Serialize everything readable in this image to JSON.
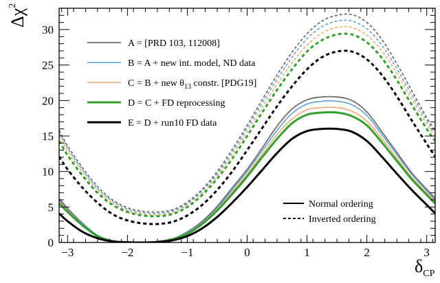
{
  "chart_data": {
    "type": "line",
    "xlabel": {
      "main": "δ",
      "sub": "CP"
    },
    "ylabel": {
      "main": "Δχ",
      "sup": "2"
    },
    "xlim": [
      -3.1416,
      3.1416
    ],
    "ylim": [
      0,
      33
    ],
    "x_ticks": [
      -3,
      -2,
      -1,
      0,
      1,
      2,
      3
    ],
    "y_ticks": [
      0,
      5,
      10,
      15,
      20,
      25,
      30
    ],
    "grid": false,
    "legend_upper": {
      "placement": "top-left",
      "entries": [
        {
          "label": "A = [PRD 103, 112008]",
          "color": "#6e6e6e",
          "width": 1.8
        },
        {
          "label": "B = A + new int. model, ND data",
          "color": "#5b9bd5",
          "width": 1.5
        },
        {
          "label_parts": [
            "C = B + new θ",
            "13",
            " constr. [PDG19]"
          ],
          "color": "#f2a46a",
          "width": 1.5
        },
        {
          "label": "D = C + FD reprocessing",
          "color": "#33a02c",
          "width": 3
        },
        {
          "label": "E = D + run10 FD data",
          "color": "#000000",
          "width": 3
        }
      ]
    },
    "legend_lower": {
      "placement": "bottom-right",
      "entries": [
        {
          "label": "Normal ordering",
          "style": "solid"
        },
        {
          "label": "Inverted ordering",
          "style": "dashed"
        }
      ]
    },
    "x_samples": [
      -3.1416,
      -3.0,
      -2.75,
      -2.5,
      -2.25,
      -2.0,
      -1.75,
      -1.5,
      -1.25,
      -1.0,
      -0.75,
      -0.5,
      -0.25,
      0.0,
      0.25,
      0.5,
      0.75,
      1.0,
      1.25,
      1.5,
      1.75,
      2.0,
      2.25,
      2.5,
      2.75,
      3.0,
      3.1416
    ],
    "series": [
      {
        "name": "A, Normal ordering",
        "color": "#6e6e6e",
        "width": 1.8,
        "dash": false,
        "values": [
          6.2,
          4.8,
          2.7,
          1.0,
          0.25,
          0.05,
          0.0,
          0.1,
          0.5,
          1.5,
          3.0,
          5.1,
          7.7,
          10.3,
          13.3,
          16.4,
          18.8,
          20.1,
          20.5,
          20.5,
          20.0,
          18.4,
          15.6,
          12.7,
          9.8,
          7.5,
          6.2
        ]
      },
      {
        "name": "B, Normal ordering",
        "color": "#5b9bd5",
        "width": 1.5,
        "dash": false,
        "values": [
          6.0,
          4.6,
          2.6,
          1.0,
          0.25,
          0.05,
          0.0,
          0.1,
          0.5,
          1.4,
          2.8,
          4.9,
          7.4,
          10.0,
          12.9,
          15.8,
          18.2,
          19.5,
          19.9,
          19.9,
          19.4,
          17.9,
          15.2,
          12.4,
          9.6,
          7.3,
          6.0
        ]
      },
      {
        "name": "C, Normal ordering",
        "color": "#f2a46a",
        "width": 1.5,
        "dash": false,
        "values": [
          5.8,
          4.5,
          2.5,
          0.95,
          0.22,
          0.04,
          0.0,
          0.1,
          0.5,
          1.3,
          2.7,
          4.7,
          7.1,
          9.6,
          12.4,
          15.2,
          17.4,
          18.7,
          19.0,
          19.0,
          18.5,
          17.1,
          14.6,
          11.9,
          9.2,
          7.0,
          5.8
        ]
      },
      {
        "name": "D, Normal ordering",
        "color": "#33a02c",
        "width": 3,
        "dash": false,
        "values": [
          5.5,
          4.3,
          2.4,
          0.9,
          0.2,
          0.03,
          0.0,
          0.1,
          0.45,
          1.2,
          2.6,
          4.5,
          6.8,
          9.3,
          12.0,
          14.6,
          16.8,
          18.0,
          18.3,
          18.3,
          17.8,
          16.5,
          14.1,
          11.5,
          8.9,
          6.7,
          5.5
        ]
      },
      {
        "name": "E, Normal ordering",
        "color": "#000000",
        "width": 3,
        "dash": false,
        "values": [
          4.1,
          3.0,
          1.5,
          0.6,
          0.15,
          0.02,
          0.0,
          0.05,
          0.3,
          0.9,
          2.0,
          3.6,
          5.6,
          7.8,
          10.2,
          12.6,
          14.6,
          15.7,
          16.0,
          16.0,
          15.6,
          14.3,
          12.1,
          9.7,
          7.4,
          5.3,
          4.1
        ]
      },
      {
        "name": "A, Inverted ordering",
        "color": "#6e6e6e",
        "width": 1.8,
        "dash": true,
        "values": [
          15.8,
          13.6,
          10.5,
          7.9,
          6.0,
          4.9,
          4.4,
          4.3,
          4.6,
          5.7,
          7.5,
          10.0,
          13.1,
          16.5,
          20.1,
          23.6,
          26.8,
          29.4,
          31.2,
          32.0,
          32.1,
          31.0,
          28.6,
          25.2,
          21.4,
          17.6,
          15.8
        ]
      },
      {
        "name": "B, Inverted ordering",
        "color": "#5b9bd5",
        "width": 1.5,
        "dash": true,
        "values": [
          15.4,
          13.3,
          10.2,
          7.6,
          5.8,
          4.7,
          4.2,
          4.1,
          4.4,
          5.5,
          7.3,
          9.7,
          12.7,
          16.1,
          19.6,
          23.0,
          26.1,
          28.7,
          30.4,
          31.2,
          31.2,
          30.1,
          27.8,
          24.5,
          20.8,
          17.2,
          15.4
        ]
      },
      {
        "name": "C, Inverted ordering",
        "color": "#f2a46a",
        "width": 1.5,
        "dash": true,
        "values": [
          15.0,
          12.9,
          9.9,
          7.4,
          5.6,
          4.5,
          4.0,
          3.9,
          4.2,
          5.3,
          7.0,
          9.4,
          12.3,
          15.6,
          19.0,
          22.3,
          25.3,
          27.8,
          29.5,
          30.3,
          30.3,
          29.2,
          27.0,
          23.8,
          20.2,
          16.7,
          15.0
        ]
      },
      {
        "name": "D, Inverted ordering",
        "color": "#33a02c",
        "width": 3,
        "dash": true,
        "values": [
          14.3,
          12.3,
          9.4,
          7.0,
          5.3,
          4.3,
          3.8,
          3.7,
          4.0,
          5.0,
          6.7,
          9.0,
          11.8,
          15.0,
          18.3,
          21.5,
          24.4,
          26.9,
          28.5,
          29.3,
          29.3,
          28.2,
          26.0,
          22.9,
          19.4,
          16.0,
          14.3
        ]
      },
      {
        "name": "E, Inverted ordering",
        "color": "#000000",
        "width": 3,
        "dash": true,
        "values": [
          12.1,
          10.3,
          7.7,
          5.6,
          4.0,
          3.1,
          2.7,
          2.6,
          2.9,
          3.8,
          5.3,
          7.4,
          10.0,
          13.0,
          16.1,
          19.2,
          22.0,
          24.4,
          26.1,
          26.9,
          26.9,
          25.8,
          23.6,
          20.6,
          17.2,
          13.9,
          12.1
        ]
      }
    ]
  }
}
